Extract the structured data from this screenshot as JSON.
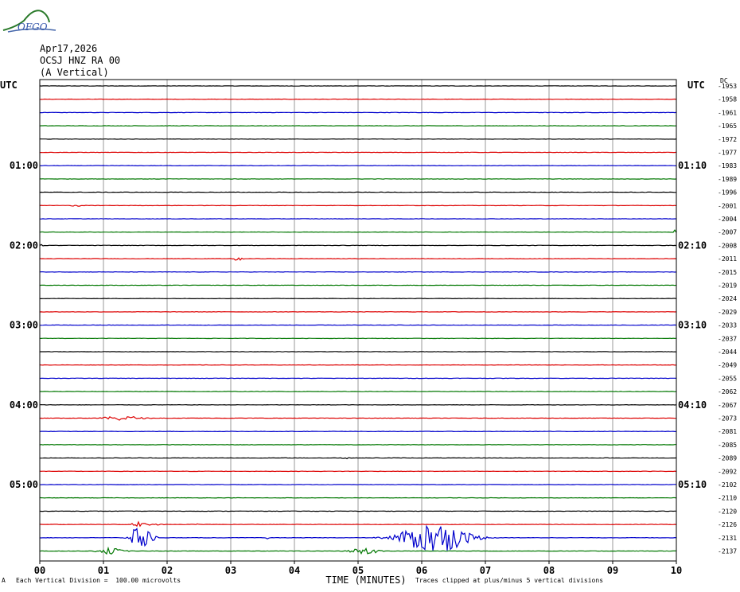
{
  "header": {
    "logo_text": "OFGO",
    "date": "Apr17,2026",
    "station": "OCSJ HNZ RA 00",
    "component": "(A Vertical)",
    "left_timezone": "UTC",
    "right_timezone": "UTC"
  },
  "footer": {
    "scale_note": "Each Vertical Division =  100.00 microvolts",
    "clip_note": "Traces clipped at plus/minus 5 vertical divisions",
    "corner_mark": "A"
  },
  "colors": {
    "trace_cycle": [
      "#000000",
      "#dd0000",
      "#0000cc",
      "#007700"
    ],
    "grid": "#999999",
    "frame": "#000000"
  },
  "chart_data": {
    "type": "line",
    "title": "",
    "xlabel": "TIME (MINUTES)",
    "xlim": [
      0,
      10
    ],
    "x_ticks": [
      "00",
      "01",
      "02",
      "03",
      "04",
      "05",
      "06",
      "07",
      "08",
      "09",
      "10"
    ],
    "trace_count": 36,
    "left_time_labels": [
      {
        "row": 6,
        "label": "01:00"
      },
      {
        "row": 12,
        "label": "02:00"
      },
      {
        "row": 18,
        "label": "03:00"
      },
      {
        "row": 24,
        "label": "04:00"
      },
      {
        "row": 30,
        "label": "05:00"
      }
    ],
    "right_time_labels": [
      {
        "row": 6,
        "label": "01:10"
      },
      {
        "row": 12,
        "label": "02:10"
      },
      {
        "row": 18,
        "label": "03:10"
      },
      {
        "row": 24,
        "label": "04:10"
      },
      {
        "row": 30,
        "label": "05:10"
      }
    ],
    "right_values": [
      "-1953",
      "-1958",
      "-1961",
      "-1965",
      "-1972",
      "-1977",
      "-1983",
      "-1989",
      "-1996",
      "-2001",
      "-2004",
      "-2007",
      "-2008",
      "-2011",
      "-2015",
      "-2019",
      "-2024",
      "-2029",
      "-2033",
      "-2037",
      "-2044",
      "-2049",
      "-2055",
      "-2062",
      "-2067",
      "-2073",
      "-2081",
      "-2085",
      "-2089",
      "-2092",
      "-2102",
      "-2110",
      "-2120",
      "-2126",
      "-2131",
      "-2137"
    ],
    "right_header": "DC",
    "events": [
      {
        "row": 9,
        "minute": 0.5,
        "duration": 0.2,
        "amplitude": 0.35
      },
      {
        "row": 11,
        "minute": 9.95,
        "duration": 0.05,
        "amplitude": 1.0
      },
      {
        "row": 12,
        "minute": 0.02,
        "duration": 0.04,
        "amplitude": 0.6
      },
      {
        "row": 13,
        "minute": 3.0,
        "duration": 0.2,
        "amplitude": 0.7
      },
      {
        "row": 25,
        "minute": 1.0,
        "duration": 0.6,
        "amplitude": 0.7
      },
      {
        "row": 28,
        "minute": 4.75,
        "duration": 0.15,
        "amplitude": 0.25
      },
      {
        "row": 33,
        "minute": 1.45,
        "duration": 0.2,
        "amplitude": 0.9
      },
      {
        "row": 33,
        "minute": 1.65,
        "duration": 0.3,
        "amplitude": 0.3
      },
      {
        "row": 33,
        "minute": 2.45,
        "duration": 0.05,
        "amplitude": 0.4
      },
      {
        "row": 34,
        "minute": 1.45,
        "duration": 0.3,
        "amplitude": 5.0
      },
      {
        "row": 34,
        "minute": 3.55,
        "duration": 0.05,
        "amplitude": 0.6
      },
      {
        "row": 34,
        "minute": 5.7,
        "duration": 1.0,
        "amplitude": 5.0
      },
      {
        "row": 35,
        "minute": 0.9,
        "duration": 0.4,
        "amplitude": 1.0
      },
      {
        "row": 35,
        "minute": 4.9,
        "duration": 0.4,
        "amplitude": 1.2
      }
    ]
  }
}
